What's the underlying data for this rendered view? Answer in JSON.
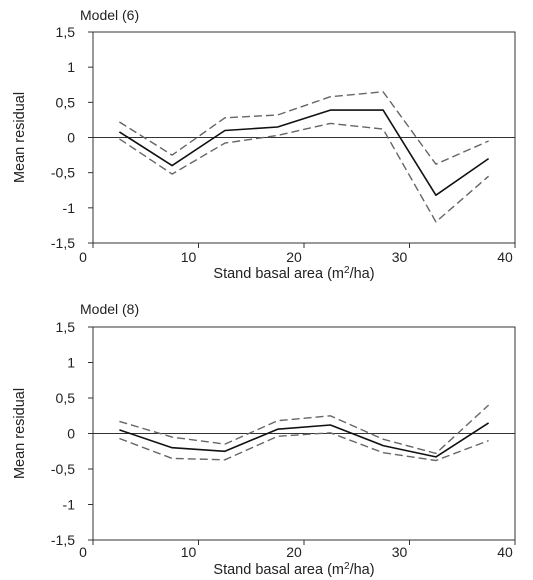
{
  "chart_data": [
    {
      "type": "line",
      "title": "Model (6)",
      "xlabel": "Stand basal area (m2/ha)",
      "ylabel": "Mean residual",
      "xlim": [
        0,
        40
      ],
      "ylim": [
        -1.5,
        1.5
      ],
      "xticks": [
        "0",
        "10",
        "20",
        "30",
        "40"
      ],
      "yticks": [
        "1,5",
        "1",
        "0,5",
        "0",
        "-0,5",
        "-1",
        "-1,5"
      ],
      "zero_line": true,
      "x": [
        2.5,
        7.5,
        12.5,
        17.5,
        22.5,
        27.5,
        32.5,
        37.5
      ],
      "series": [
        {
          "style": "solid",
          "color": "#111111",
          "values": [
            0.08,
            -0.4,
            0.1,
            0.15,
            0.39,
            0.39,
            -0.82,
            -0.3
          ]
        },
        {
          "style": "dashed",
          "color": "#666666",
          "values": [
            0.22,
            -0.25,
            0.28,
            0.32,
            0.58,
            0.65,
            -0.38,
            -0.05
          ]
        },
        {
          "style": "dashed",
          "color": "#666666",
          "values": [
            -0.02,
            -0.52,
            -0.08,
            0.03,
            0.2,
            0.12,
            -1.2,
            -0.55
          ]
        }
      ]
    },
    {
      "type": "line",
      "title": "Model (8)",
      "xlabel": "Stand basal area (m2/ha)",
      "ylabel": "Mean residual",
      "xlim": [
        0,
        40
      ],
      "ylim": [
        -1.5,
        1.5
      ],
      "xticks": [
        "0",
        "10",
        "20",
        "30",
        "40"
      ],
      "yticks": [
        "1,5",
        "1",
        "0,5",
        "0",
        "-0,5",
        "-1",
        "-1,5"
      ],
      "zero_line": true,
      "x": [
        2.5,
        7.5,
        12.5,
        17.5,
        22.5,
        27.5,
        32.5,
        37.5
      ],
      "series": [
        {
          "style": "solid",
          "color": "#111111",
          "values": [
            0.05,
            -0.2,
            -0.25,
            0.06,
            0.12,
            -0.17,
            -0.33,
            0.15
          ]
        },
        {
          "style": "dashed",
          "color": "#666666",
          "values": [
            0.17,
            -0.05,
            -0.15,
            0.18,
            0.25,
            -0.08,
            -0.28,
            0.4
          ]
        },
        {
          "style": "dashed",
          "color": "#666666",
          "values": [
            -0.07,
            -0.35,
            -0.37,
            -0.04,
            0.01,
            -0.27,
            -0.38,
            -0.1
          ]
        }
      ]
    }
  ]
}
